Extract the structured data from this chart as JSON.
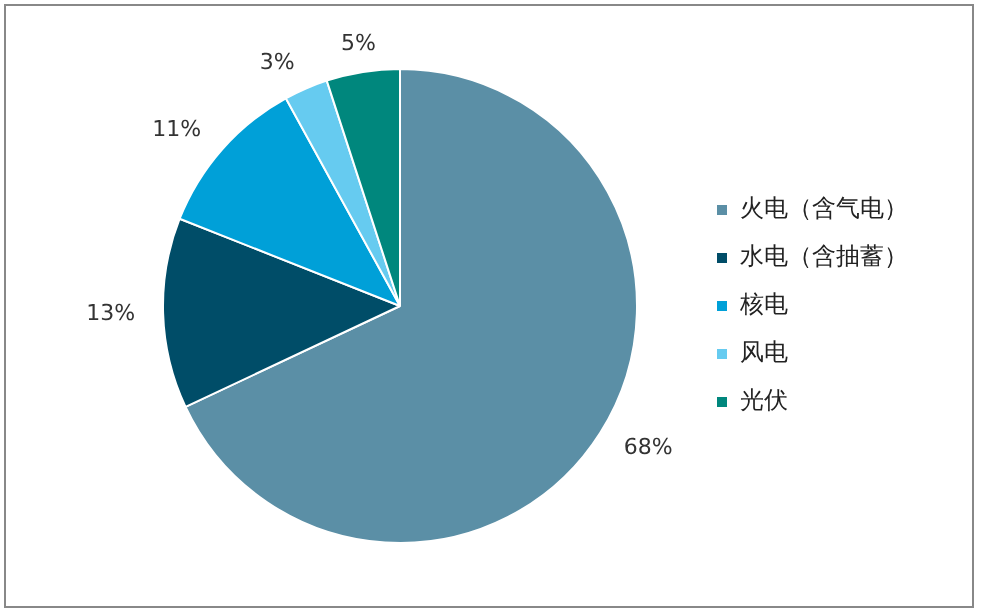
{
  "chart_data": {
    "type": "pie",
    "categories": [
      "火电（含气电）",
      "水电（含抽蓄）",
      "核电",
      "风电",
      "光伏"
    ],
    "values": [
      68,
      13,
      11,
      3,
      5
    ],
    "colors": [
      "#5b8fa6",
      "#004d68",
      "#00a0d8",
      "#66cbf0",
      "#00877d"
    ],
    "value_labels": [
      "68%",
      "13%",
      "11%",
      "3%",
      "5%"
    ],
    "legend": "right"
  }
}
